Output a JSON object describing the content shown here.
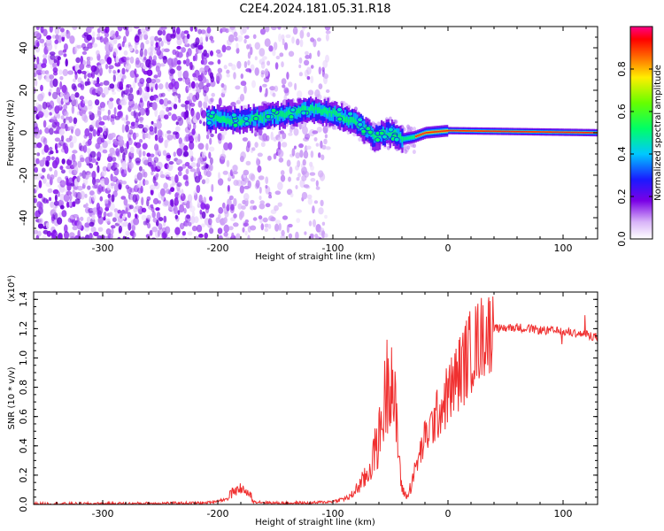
{
  "title": "C2E4.2024.181.05.31.R18",
  "chart_data": [
    {
      "type": "heatmap",
      "title": "C2E4.2024.181.05.31.R18",
      "xlabel": "Height of straight line (km)",
      "ylabel": "Frequency (Hz)",
      "xlim": [
        -360,
        130
      ],
      "ylim": [
        -50,
        50
      ],
      "xticks": [
        -300,
        -200,
        -100,
        0,
        100
      ],
      "yticks": [
        -40,
        -20,
        0,
        20,
        40
      ],
      "colorbar": {
        "label": "Normalized spectral amplitude",
        "range": [
          0.0,
          1.0
        ],
        "ticks": [
          "0.0",
          "0.2",
          "0.4",
          "0.6",
          "0.8"
        ]
      },
      "ridge": [
        {
          "x": -210,
          "y": 7
        },
        {
          "x": -180,
          "y": 6
        },
        {
          "x": -150,
          "y": 8
        },
        {
          "x": -120,
          "y": 11
        },
        {
          "x": -100,
          "y": 9
        },
        {
          "x": -80,
          "y": 5
        },
        {
          "x": -65,
          "y": -2
        },
        {
          "x": -50,
          "y": 0
        },
        {
          "x": -40,
          "y": -3
        },
        {
          "x": -30,
          "y": -2
        },
        {
          "x": -20,
          "y": 0
        },
        {
          "x": 0,
          "y": 1
        },
        {
          "x": 130,
          "y": 0
        }
      ]
    },
    {
      "type": "line",
      "xlabel": "Height of straight line (km)",
      "ylabel": "SNR (10 * v/v)",
      "yscale_note": "(x10⁴)",
      "xlim": [
        -360,
        130
      ],
      "ylim": [
        0.0,
        1.45
      ],
      "xticks": [
        -300,
        -200,
        -100,
        0,
        100
      ],
      "yticks": [
        "0.0",
        "0.2",
        "0.4",
        "0.6",
        "0.8",
        "1.0",
        "1.2",
        "1.4"
      ],
      "color": "#f03030",
      "series": [
        {
          "x": [
            -360,
            -300,
            -250,
            -210,
            -190,
            -180,
            -170,
            -150,
            -120,
            -100,
            -85,
            -70,
            -60,
            -55,
            -50,
            -45,
            -40,
            -35,
            -30,
            -20,
            -10,
            0,
            10,
            20,
            30,
            40,
            60,
            80,
            100,
            120,
            130
          ],
          "y": [
            0.005,
            0.005,
            0.008,
            0.01,
            0.04,
            0.08,
            0.02,
            0.01,
            0.01,
            0.02,
            0.05,
            0.2,
            0.45,
            0.7,
            1.0,
            0.55,
            0.1,
            0.05,
            0.2,
            0.45,
            0.6,
            0.75,
            0.9,
            1.05,
            1.15,
            1.2,
            1.21,
            1.19,
            1.18,
            1.16,
            1.14
          ]
        }
      ]
    }
  ]
}
